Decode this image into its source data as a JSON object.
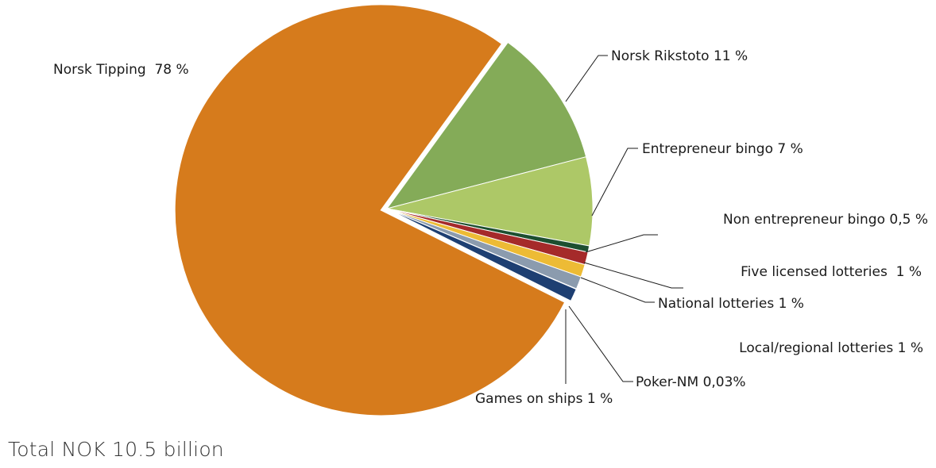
{
  "chart_data": {
    "type": "pie",
    "slices": [
      {
        "label": "Norsk Tipping  78 %",
        "value": 78,
        "color": "#D67B1C",
        "exploded": true
      },
      {
        "label": "Norsk Rikstoto 11 %",
        "value": 11,
        "color": "#84AB58"
      },
      {
        "label": "Entrepreneur bingo 7 %",
        "value": 7,
        "color": "#ADC867"
      },
      {
        "label": "Non entrepreneur bingo 0,5 %",
        "value": 0.5,
        "color": "#1D4F30"
      },
      {
        "label": "Five licensed lotteries  1 %",
        "value": 1,
        "color": "#A52A2A"
      },
      {
        "label": "National lotteries 1 %",
        "value": 1,
        "color": "#EDBB35"
      },
      {
        "label": "Local/regional lotteries 1 %",
        "value": 1,
        "color": "#8B9BAE"
      },
      {
        "label": "Poker-NM 0,03%",
        "value": 0.03,
        "color": "#3E5C7A"
      },
      {
        "label": "Games on ships 1 %",
        "value": 1,
        "color": "#1E3F72"
      }
    ],
    "footnote": "Total NOK 10.5 billion"
  }
}
